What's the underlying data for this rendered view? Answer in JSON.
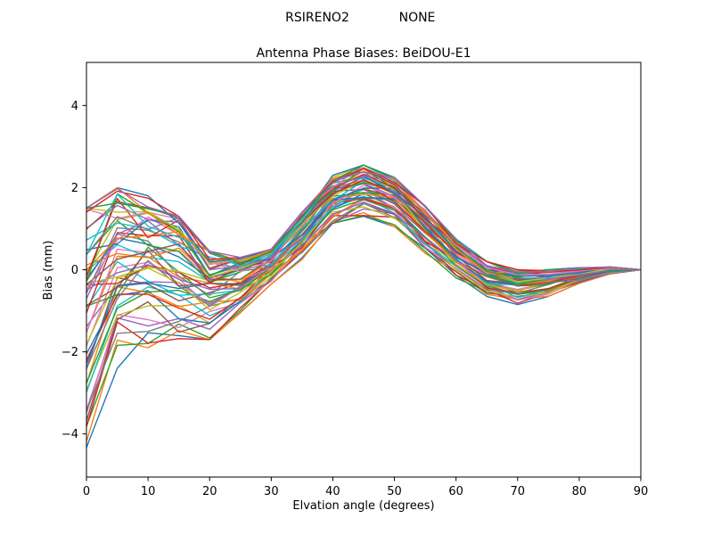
{
  "header": {
    "left": "RSIRENO2",
    "right": "NONE"
  },
  "chart_data": {
    "type": "line",
    "title": "Antenna Phase Biases: BeiDOU-E1",
    "xlabel": "Elvation angle (degrees)",
    "ylabel": "Bias (mm)",
    "xlim": [
      0,
      90
    ],
    "ylim": [
      -5.05,
      5.05
    ],
    "x_ticks": [
      0,
      10,
      20,
      30,
      40,
      50,
      60,
      70,
      80,
      90
    ],
    "y_ticks": [
      -4,
      -2,
      0,
      2,
      4
    ],
    "grid": false,
    "legend": "none",
    "x": [
      0,
      5,
      10,
      15,
      20,
      25,
      30,
      35,
      40,
      45,
      50,
      55,
      60,
      65,
      70,
      75,
      80,
      85,
      90
    ],
    "band_upper": [
      1.5,
      2.0,
      1.8,
      1.3,
      0.45,
      0.3,
      0.5,
      1.4,
      2.3,
      2.55,
      2.25,
      1.55,
      0.75,
      0.2,
      0.0,
      0.0,
      0.05,
      0.07,
      0.0
    ],
    "band_lower": [
      -4.5,
      -2.4,
      -1.9,
      -1.75,
      -1.7,
      -1.05,
      -0.35,
      0.25,
      1.0,
      1.3,
      1.05,
      0.4,
      -0.2,
      -0.65,
      -0.85,
      -0.65,
      -0.35,
      -0.1,
      0.0
    ],
    "num_lines": 55,
    "line_colors": [
      "#1f77b4",
      "#ff7f0e",
      "#2ca02c",
      "#d62728",
      "#9467bd",
      "#8c564b",
      "#e377c2",
      "#7f7f7f",
      "#bcbd22",
      "#17becf"
    ],
    "generation": {
      "skew": 0.7,
      "wiggle": 0.28,
      "seed": 42
    },
    "description": "Approximately 55 overlapping antenna phase-bias curves (one per satellite), filling the band between band_lower and band_upper; spread is widest at 0 degrees (about -4.5 to 1.5 mm), local peak near 5-10 deg, dip near 20-25 deg, common maximum near 45 deg (about 1.3 to 2.55 mm), shallow minimum near 70 deg, all converging to 0 mm at 90 degrees elevation"
  }
}
